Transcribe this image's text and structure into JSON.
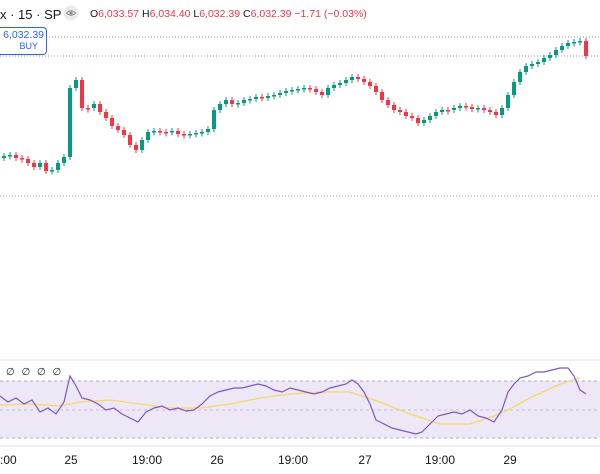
{
  "header": {
    "symbol_suffix": "x · 15 · SP",
    "ohlc": {
      "o_label": "O",
      "o_value": "6,033.57",
      "h_label": "H",
      "h_value": "6,034.40",
      "l_label": "L",
      "l_value": "6,032.39",
      "c_label": "C",
      "c_value": "6,032.39",
      "change": "−1.71 (−0.03%)"
    }
  },
  "buy_widget": {
    "price": "6,032.39",
    "label": "BUY"
  },
  "rsi_pane": {
    "values_text": "∅ ∅ ∅ ∅"
  },
  "time_axis": [
    {
      "label": ":00",
      "pos": "edge"
    },
    {
      "label": "25"
    },
    {
      "label": "19:00"
    },
    {
      "label": "26"
    },
    {
      "label": "19:00"
    },
    {
      "label": "27"
    },
    {
      "label": "19:00"
    },
    {
      "label": "29"
    }
  ],
  "colors": {
    "up": "#089981",
    "down": "#f23645",
    "rsi_line": "#7e57c2",
    "rsi_ma": "#f5d76e",
    "rsi_band": "#ede7f6",
    "accent": "#2962ff"
  },
  "chart_data": {
    "type": "candlestick",
    "interval": "15",
    "ohlc_last": {
      "open": 6033.57,
      "high": 6034.4,
      "low": 6032.39,
      "close": 6032.39,
      "change": -1.71,
      "change_pct": -0.03
    },
    "rsi": {
      "upper_band": 70,
      "lower_band": 30
    }
  }
}
